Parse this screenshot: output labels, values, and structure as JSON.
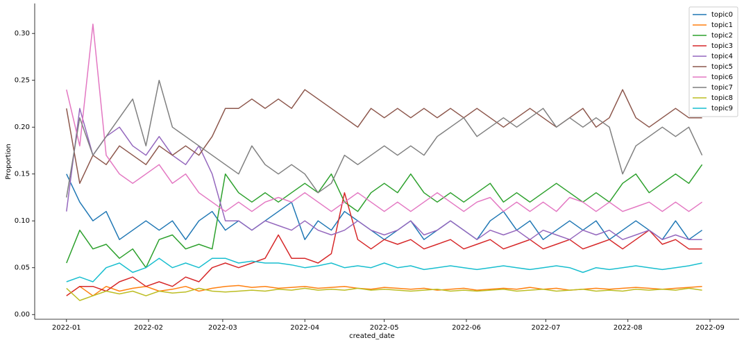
{
  "chart_data": {
    "type": "line",
    "x_label": "created_date",
    "y_label": "Proportion",
    "x": [
      0,
      5,
      10,
      15,
      20,
      25,
      30,
      35,
      40,
      45,
      50,
      55,
      60,
      65,
      70,
      75,
      80,
      85,
      90,
      95,
      100,
      105,
      110,
      115,
      120,
      125,
      130,
      135,
      140,
      145,
      150,
      155,
      160,
      165,
      170,
      175,
      180,
      185,
      190,
      195,
      200,
      205,
      210,
      215,
      220,
      225,
      230,
      235,
      240
    ],
    "xlim": [
      -12,
      254
    ],
    "xticks": [
      {
        "value": 0,
        "label": "2022-01"
      },
      {
        "value": 31,
        "label": "2022-02"
      },
      {
        "value": 59,
        "label": "2022-03"
      },
      {
        "value": 90,
        "label": "2022-04"
      },
      {
        "value": 120,
        "label": "2022-05"
      },
      {
        "value": 151,
        "label": "2022-06"
      },
      {
        "value": 181,
        "label": "2022-07"
      },
      {
        "value": 212,
        "label": "2022-08"
      },
      {
        "value": 243,
        "label": "2022-09"
      }
    ],
    "ylim": [
      -0.005,
      0.332
    ],
    "yticks": [
      {
        "value": 0,
        "label": "0.00"
      },
      0.05,
      {
        "value": 0.1,
        "label": "0.10"
      },
      0.15,
      {
        "value": 0.2,
        "label": "0.20"
      },
      0.25,
      {
        "value": 0.3,
        "label": "0.30"
      }
    ],
    "legend": "upper right",
    "series": [
      {
        "name": "topic0",
        "color": "#1f77b4",
        "values": [
          0.15,
          0.12,
          0.1,
          0.11,
          0.08,
          0.09,
          0.1,
          0.09,
          0.1,
          0.08,
          0.1,
          0.11,
          0.09,
          0.1,
          0.09,
          0.1,
          0.11,
          0.12,
          0.08,
          0.1,
          0.09,
          0.11,
          0.1,
          0.09,
          0.08,
          0.09,
          0.1,
          0.08,
          0.09,
          0.1,
          0.09,
          0.08,
          0.1,
          0.11,
          0.09,
          0.1,
          0.08,
          0.09,
          0.1,
          0.09,
          0.1,
          0.08,
          0.09,
          0.1,
          0.09,
          0.08,
          0.1,
          0.08,
          0.09
        ]
      },
      {
        "name": "topic1",
        "color": "#ff7f0e",
        "values": [
          0.02,
          0.03,
          0.02,
          0.03,
          0.025,
          0.028,
          0.03,
          0.025,
          0.027,
          0.03,
          0.025,
          0.028,
          0.03,
          0.031,
          0.029,
          0.03,
          0.028,
          0.029,
          0.03,
          0.028,
          0.029,
          0.03,
          0.028,
          0.027,
          0.029,
          0.028,
          0.027,
          0.028,
          0.026,
          0.027,
          0.028,
          0.026,
          0.027,
          0.028,
          0.027,
          0.029,
          0.027,
          0.028,
          0.026,
          0.027,
          0.028,
          0.027,
          0.028,
          0.029,
          0.028,
          0.027,
          0.028,
          0.029,
          0.03
        ]
      },
      {
        "name": "topic2",
        "color": "#2ca02c",
        "values": [
          0.055,
          0.09,
          0.07,
          0.075,
          0.06,
          0.07,
          0.05,
          0.08,
          0.085,
          0.07,
          0.075,
          0.07,
          0.15,
          0.13,
          0.12,
          0.13,
          0.12,
          0.13,
          0.14,
          0.13,
          0.15,
          0.12,
          0.11,
          0.13,
          0.14,
          0.13,
          0.15,
          0.13,
          0.12,
          0.13,
          0.12,
          0.13,
          0.14,
          0.12,
          0.13,
          0.12,
          0.13,
          0.14,
          0.13,
          0.12,
          0.13,
          0.12,
          0.14,
          0.15,
          0.13,
          0.14,
          0.15,
          0.14,
          0.16
        ]
      },
      {
        "name": "topic3",
        "color": "#d62728",
        "values": [
          0.02,
          0.03,
          0.03,
          0.025,
          0.035,
          0.04,
          0.03,
          0.035,
          0.03,
          0.04,
          0.035,
          0.05,
          0.055,
          0.05,
          0.055,
          0.06,
          0.085,
          0.06,
          0.06,
          0.055,
          0.065,
          0.13,
          0.08,
          0.07,
          0.08,
          0.075,
          0.08,
          0.07,
          0.075,
          0.08,
          0.07,
          0.075,
          0.08,
          0.07,
          0.075,
          0.08,
          0.07,
          0.075,
          0.08,
          0.07,
          0.075,
          0.08,
          0.07,
          0.08,
          0.09,
          0.075,
          0.08,
          0.07,
          0.07
        ]
      },
      {
        "name": "topic4",
        "color": "#9467bd",
        "values": [
          0.11,
          0.22,
          0.17,
          0.19,
          0.2,
          0.18,
          0.17,
          0.19,
          0.17,
          0.16,
          0.18,
          0.15,
          0.1,
          0.1,
          0.09,
          0.1,
          0.095,
          0.09,
          0.1,
          0.09,
          0.085,
          0.09,
          0.1,
          0.09,
          0.085,
          0.09,
          0.1,
          0.085,
          0.09,
          0.1,
          0.09,
          0.08,
          0.09,
          0.085,
          0.09,
          0.08,
          0.09,
          0.085,
          0.08,
          0.09,
          0.085,
          0.09,
          0.08,
          0.085,
          0.09,
          0.08,
          0.085,
          0.08,
          0.08
        ]
      },
      {
        "name": "topic5",
        "color": "#8c564b",
        "values": [
          0.22,
          0.14,
          0.17,
          0.16,
          0.18,
          0.17,
          0.16,
          0.18,
          0.17,
          0.18,
          0.17,
          0.19,
          0.22,
          0.22,
          0.23,
          0.22,
          0.23,
          0.22,
          0.24,
          0.23,
          0.22,
          0.21,
          0.2,
          0.22,
          0.21,
          0.22,
          0.21,
          0.22,
          0.21,
          0.22,
          0.21,
          0.22,
          0.21,
          0.2,
          0.21,
          0.22,
          0.21,
          0.2,
          0.21,
          0.22,
          0.2,
          0.21,
          0.24,
          0.21,
          0.2,
          0.21,
          0.22,
          0.21,
          0.21
        ]
      },
      {
        "name": "topic6",
        "color": "#e377c2",
        "values": [
          0.24,
          0.18,
          0.31,
          0.17,
          0.15,
          0.14,
          0.15,
          0.16,
          0.14,
          0.15,
          0.13,
          0.12,
          0.11,
          0.12,
          0.11,
          0.12,
          0.125,
          0.12,
          0.13,
          0.12,
          0.11,
          0.12,
          0.13,
          0.12,
          0.11,
          0.12,
          0.11,
          0.12,
          0.13,
          0.12,
          0.11,
          0.12,
          0.125,
          0.11,
          0.12,
          0.11,
          0.12,
          0.11,
          0.125,
          0.12,
          0.11,
          0.12,
          0.11,
          0.115,
          0.12,
          0.11,
          0.12,
          0.11,
          0.12
        ]
      },
      {
        "name": "topic7",
        "color": "#7f7f7f",
        "values": [
          0.125,
          0.21,
          0.17,
          0.19,
          0.21,
          0.23,
          0.18,
          0.25,
          0.2,
          0.19,
          0.18,
          0.17,
          0.16,
          0.15,
          0.18,
          0.16,
          0.15,
          0.16,
          0.15,
          0.13,
          0.14,
          0.17,
          0.16,
          0.17,
          0.18,
          0.17,
          0.18,
          0.17,
          0.19,
          0.2,
          0.21,
          0.19,
          0.2,
          0.21,
          0.2,
          0.21,
          0.22,
          0.2,
          0.21,
          0.2,
          0.21,
          0.2,
          0.15,
          0.18,
          0.19,
          0.2,
          0.19,
          0.2,
          0.17
        ]
      },
      {
        "name": "topic8",
        "color": "#bcbd22",
        "values": [
          0.028,
          0.015,
          0.02,
          0.025,
          0.022,
          0.025,
          0.02,
          0.025,
          0.023,
          0.024,
          0.028,
          0.025,
          0.024,
          0.025,
          0.026,
          0.025,
          0.027,
          0.026,
          0.028,
          0.026,
          0.027,
          0.026,
          0.028,
          0.026,
          0.027,
          0.026,
          0.025,
          0.026,
          0.027,
          0.025,
          0.026,
          0.025,
          0.026,
          0.027,
          0.025,
          0.026,
          0.027,
          0.025,
          0.026,
          0.027,
          0.025,
          0.026,
          0.025,
          0.027,
          0.026,
          0.027,
          0.026,
          0.028,
          0.026
        ]
      },
      {
        "name": "topic9",
        "color": "#17becf",
        "values": [
          0.035,
          0.04,
          0.035,
          0.05,
          0.055,
          0.045,
          0.05,
          0.06,
          0.05,
          0.055,
          0.05,
          0.06,
          0.06,
          0.055,
          0.057,
          0.055,
          0.055,
          0.053,
          0.05,
          0.052,
          0.055,
          0.05,
          0.052,
          0.05,
          0.055,
          0.05,
          0.052,
          0.048,
          0.05,
          0.052,
          0.05,
          0.048,
          0.05,
          0.052,
          0.05,
          0.048,
          0.05,
          0.052,
          0.05,
          0.045,
          0.05,
          0.048,
          0.05,
          0.052,
          0.05,
          0.048,
          0.05,
          0.052,
          0.055
        ]
      }
    ]
  }
}
